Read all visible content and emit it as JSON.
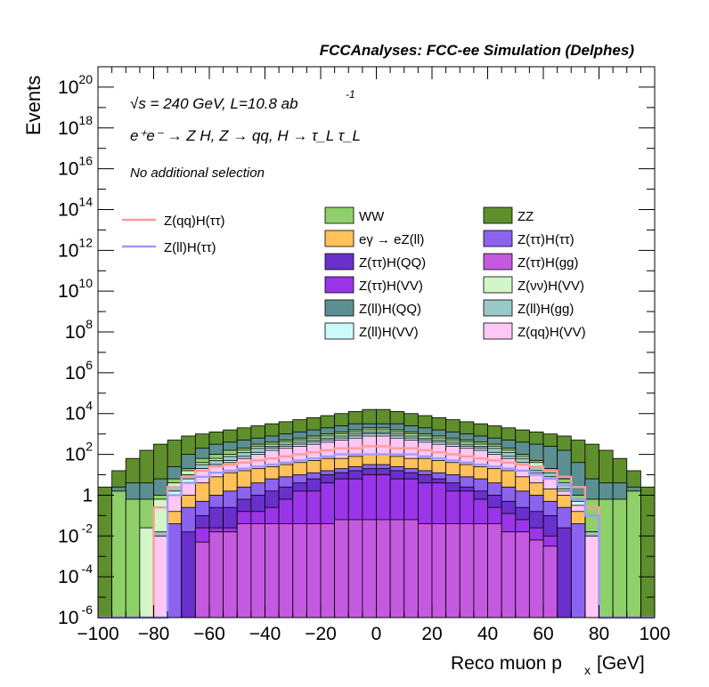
{
  "header": "FCCAnalyses: FCC-ee Simulation (Delphes)",
  "annotations": {
    "line1": "√s = 240 GeV, L=10.8 ab",
    "line1_sup": "-1",
    "line2": "e⁺e⁻ → Z H, Z → qq, H → τ_L τ_L",
    "line3": "No additional selection"
  },
  "colors": {
    "WW": "#8fd06a",
    "ZZ": "#5f8f2c",
    "egamma": "#ffc25a",
    "Ztautau_Htautau": "#8b63f0",
    "Ztautau_HQQ": "#6a30cc",
    "Ztautau_Hgg": "#c45ae0",
    "Ztautau_HVV": "#9a35e8",
    "Znunu_HVV": "#d2f6c7",
    "Zll_HQQ": "#5c8f91",
    "Zll_Hgg": "#99c8c7",
    "Zll_HVV": "#cbfafb",
    "Zqq_HVV": "#ffc8f4",
    "sig_qq": "#ff9a9a",
    "sig_ll": "#9b9bff"
  },
  "chart_data": {
    "type": "bar",
    "stacked": true,
    "log_y": true,
    "xlabel": "Reco muon p",
    "xlabel_sub": "x",
    "xlabel_unit": "[GeV]",
    "ylabel": "Events",
    "xlim": [
      -100,
      100
    ],
    "ylim_exp": [
      -6,
      21
    ],
    "x_ticks": [
      "−100",
      "−80",
      "−60",
      "−40",
      "−20",
      "0",
      "20",
      "40",
      "60",
      "80",
      "100"
    ],
    "y_ticks": [
      {
        "base": "10",
        "exp": "20",
        "v": 20
      },
      {
        "base": "10",
        "exp": "18",
        "v": 18
      },
      {
        "base": "10",
        "exp": "16",
        "v": 16
      },
      {
        "base": "10",
        "exp": "14",
        "v": 14
      },
      {
        "base": "10",
        "exp": "12",
        "v": 12
      },
      {
        "base": "10",
        "exp": "10",
        "v": 10
      },
      {
        "base": "10",
        "exp": "8",
        "v": 8
      },
      {
        "base": "10",
        "exp": "6",
        "v": 6
      },
      {
        "base": "10",
        "exp": "4",
        "v": 4
      },
      {
        "base": "10",
        "exp": "2",
        "v": 2
      },
      {
        "base": "1",
        "exp": "",
        "v": 0
      },
      {
        "base": "10",
        "exp": "-2",
        "v": -2
      },
      {
        "base": "10",
        "exp": "-4",
        "v": -4
      },
      {
        "base": "10",
        "exp": "-6",
        "v": -6
      }
    ],
    "bin_centers": [
      -97.5,
      -92.5,
      -87.5,
      -82.5,
      -77.5,
      -72.5,
      -67.5,
      -62.5,
      -57.5,
      -52.5,
      -47.5,
      -42.5,
      -37.5,
      -32.5,
      -27.5,
      -22.5,
      -17.5,
      -12.5,
      -7.5,
      -2.5,
      2.5,
      7.5,
      12.5,
      17.5,
      22.5,
      27.5,
      32.5,
      37.5,
      42.5,
      47.5,
      52.5,
      57.5,
      62.5,
      67.5,
      72.5,
      77.5,
      82.5,
      87.5,
      92.5,
      97.5
    ],
    "stack_order": [
      "Ztautau_Hgg",
      "Ztautau_HVV",
      "Ztautau_HQQ",
      "Ztautau_Htautau",
      "egamma",
      "Zqq_HVV",
      "Zll_HVV",
      "Zll_Hgg",
      "Znunu_HVV",
      "WW",
      "Zll_HQQ",
      "ZZ"
    ],
    "stack_totals_log10": {
      "Ztautau_Hgg": [
        -6,
        -6,
        -6,
        -6,
        -6,
        -6,
        -6,
        -2.3,
        -1.8,
        -1.8,
        -1.4,
        -1.4,
        -1.4,
        -1.4,
        -1.4,
        -1.4,
        -1.4,
        -1.2,
        -1.2,
        -1.2,
        -1.2,
        -1.2,
        -1.2,
        -1.4,
        -1.4,
        -1.4,
        -1.4,
        -1.4,
        -1.4,
        -1.8,
        -1.8,
        -2.2,
        -2.5,
        -6,
        -6,
        -6,
        -6,
        -6,
        -6,
        -6
      ],
      "Ztautau_HVV": [
        -6,
        -6,
        -6,
        -6,
        -6,
        -6,
        -6,
        -1.6,
        -1.6,
        -1.6,
        -0.8,
        -0.8,
        -0.6,
        -0.2,
        0.2,
        0.2,
        0.6,
        0.8,
        0.8,
        1.0,
        1.0,
        0.8,
        0.8,
        0.6,
        0.6,
        0.2,
        0.2,
        -0.2,
        -0.6,
        -0.9,
        -1.2,
        -1.6,
        -2.0,
        -6,
        -6,
        -6,
        -6,
        -6,
        -6,
        -6
      ],
      "Ztautau_HQQ": [
        -6,
        -6,
        -6,
        -6,
        -6,
        -6,
        -1.8,
        -1.0,
        -0.6,
        -0.6,
        -0.2,
        0.0,
        0.2,
        0.4,
        0.6,
        0.8,
        1.0,
        1.1,
        1.2,
        1.3,
        1.3,
        1.2,
        1.1,
        1.0,
        0.8,
        0.6,
        0.4,
        0.2,
        0.0,
        -0.3,
        -0.6,
        -0.8,
        -1.0,
        -1.6,
        -6,
        -6,
        -6,
        -6,
        -6,
        -6
      ],
      "Ztautau_Htautau": [
        -6,
        -6,
        -6,
        -6,
        -6,
        -1.4,
        -0.6,
        -0.3,
        0.0,
        0.2,
        0.4,
        0.6,
        0.8,
        0.9,
        1.0,
        1.1,
        1.2,
        1.3,
        1.4,
        1.5,
        1.5,
        1.4,
        1.3,
        1.2,
        1.1,
        1.0,
        0.9,
        0.8,
        0.6,
        0.4,
        0.2,
        0.0,
        -0.3,
        -0.6,
        -1.4,
        -6,
        -6,
        -6,
        -6,
        -6
      ],
      "egamma": [
        -6,
        -6,
        -6,
        -6,
        -6,
        -0.8,
        0.0,
        0.6,
        0.9,
        1.1,
        1.2,
        1.3,
        1.4,
        1.5,
        1.6,
        1.7,
        1.8,
        1.8,
        1.9,
        2.0,
        2.0,
        1.9,
        1.8,
        1.8,
        1.7,
        1.6,
        1.5,
        1.4,
        1.3,
        1.2,
        0.9,
        0.6,
        0.3,
        0.0,
        -0.8,
        -6,
        -6,
        -6,
        -6,
        -6
      ],
      "Zqq_HVV": [
        -6,
        -6,
        -6,
        -6,
        -2.0,
        0.0,
        0.6,
        1.2,
        1.4,
        1.6,
        1.8,
        2.0,
        2.2,
        2.3,
        2.4,
        2.5,
        2.6,
        2.7,
        2.8,
        2.9,
        2.9,
        2.8,
        2.7,
        2.6,
        2.5,
        2.4,
        2.3,
        2.2,
        2.0,
        1.8,
        1.5,
        1.1,
        0.8,
        0.2,
        -0.5,
        -2.0,
        -6,
        -6,
        -6,
        -6
      ],
      "Zll_HVV": [
        -6,
        -6,
        -6,
        -6,
        -2.0,
        0.2,
        0.8,
        1.3,
        1.5,
        1.7,
        1.9,
        2.1,
        2.3,
        2.4,
        2.5,
        2.6,
        2.7,
        2.8,
        2.9,
        3.0,
        3.0,
        2.9,
        2.8,
        2.7,
        2.6,
        2.5,
        2.4,
        2.3,
        2.1,
        1.9,
        1.6,
        1.2,
        0.9,
        0.3,
        -0.3,
        -2.0,
        -6,
        -6,
        -6,
        -6
      ],
      "Zll_Hgg": [
        -6,
        -6,
        -6,
        -6,
        -1.8,
        0.4,
        1.0,
        1.5,
        1.7,
        1.9,
        2.1,
        2.3,
        2.4,
        2.5,
        2.6,
        2.7,
        2.8,
        2.9,
        3.0,
        3.1,
        3.1,
        3.0,
        2.9,
        2.8,
        2.7,
        2.6,
        2.5,
        2.4,
        2.3,
        2.1,
        1.8,
        1.4,
        1.1,
        0.5,
        -0.2,
        -1.8,
        -6,
        -6,
        -6,
        -6
      ],
      "Znunu_HVV": [
        -6,
        -6,
        -6,
        -1.6,
        -0.2,
        0.6,
        1.2,
        1.6,
        1.8,
        2.0,
        2.2,
        2.4,
        2.5,
        2.6,
        2.7,
        2.8,
        2.9,
        3.0,
        3.1,
        3.2,
        3.2,
        3.1,
        3.0,
        2.9,
        2.8,
        2.7,
        2.6,
        2.5,
        2.4,
        2.2,
        1.9,
        1.6,
        1.2,
        0.6,
        -0.2,
        -1.8,
        -6,
        -6,
        -6,
        -6
      ],
      "WW": [
        -6,
        0.2,
        -0.2,
        -0.2,
        0.0,
        0.8,
        1.3,
        1.8,
        2.0,
        2.2,
        2.3,
        2.5,
        2.6,
        2.7,
        2.8,
        2.9,
        3.0,
        3.1,
        3.2,
        3.3,
        3.3,
        3.2,
        3.1,
        3.0,
        2.9,
        2.8,
        2.7,
        2.6,
        2.5,
        2.3,
        2.0,
        1.7,
        1.3,
        0.8,
        0.0,
        -0.2,
        -0.2,
        -0.2,
        0.2,
        -6
      ],
      "Zll_HQQ": [
        -6,
        0.4,
        0.6,
        0.6,
        0.8,
        1.4,
        2.0,
        2.3,
        2.5,
        2.6,
        2.7,
        2.8,
        2.9,
        3.0,
        3.1,
        3.2,
        3.3,
        3.4,
        3.5,
        3.5,
        3.5,
        3.5,
        3.4,
        3.3,
        3.2,
        3.1,
        3.0,
        2.9,
        2.8,
        2.7,
        2.6,
        2.5,
        2.4,
        2.2,
        1.6,
        0.8,
        0.6,
        0.6,
        0.4,
        -6
      ],
      "ZZ": [
        0.4,
        1.2,
        1.8,
        2.2,
        2.5,
        2.7,
        2.9,
        3.0,
        3.1,
        3.2,
        3.3,
        3.4,
        3.5,
        3.6,
        3.7,
        3.8,
        3.9,
        4.0,
        4.1,
        4.2,
        4.2,
        4.1,
        4.0,
        3.9,
        3.8,
        3.7,
        3.6,
        3.5,
        3.4,
        3.3,
        3.2,
        3.1,
        3.0,
        2.9,
        2.7,
        2.5,
        2.2,
        1.8,
        1.2,
        0.4
      ]
    },
    "signal_lines_log10": {
      "sig_qq": [
        -6,
        -6,
        -6,
        -6,
        -0.6,
        0.4,
        0.9,
        1.2,
        1.4,
        1.5,
        1.6,
        1.7,
        1.8,
        1.9,
        2.0,
        2.1,
        2.2,
        2.3,
        2.3,
        2.4,
        2.4,
        2.3,
        2.3,
        2.2,
        2.1,
        2.0,
        1.9,
        1.8,
        1.7,
        1.6,
        1.5,
        1.4,
        1.2,
        0.9,
        0.4,
        -0.6,
        -6,
        -6,
        -6,
        -6
      ],
      "sig_ll": [
        -6,
        -6,
        -6,
        -6,
        -6,
        0.0,
        0.6,
        0.9,
        1.1,
        1.2,
        1.3,
        1.4,
        1.5,
        1.6,
        1.7,
        1.8,
        1.9,
        2.0,
        2.0,
        2.0,
        2.0,
        2.0,
        2.0,
        1.9,
        1.8,
        1.7,
        1.6,
        1.5,
        1.4,
        1.3,
        1.2,
        1.0,
        0.8,
        0.5,
        -0.2,
        -1.0,
        -6,
        -6,
        -6,
        -6
      ]
    },
    "legend_signals": [
      {
        "key": "sig_qq",
        "label": "Z(qq)H(ττ)"
      },
      {
        "key": "sig_ll",
        "label": "Z(ll)H(ττ)"
      }
    ],
    "legend_bkg": [
      {
        "key": "WW",
        "label": "WW"
      },
      {
        "key": "ZZ",
        "label": "ZZ"
      },
      {
        "key": "egamma",
        "label": "eγ → eZ(ll)"
      },
      {
        "key": "Ztautau_Htautau",
        "label": "Z(ττ)H(ττ)"
      },
      {
        "key": "Ztautau_HQQ",
        "label": "Z(ττ)H(QQ)"
      },
      {
        "key": "Ztautau_Hgg",
        "label": "Z(ττ)H(gg)"
      },
      {
        "key": "Ztautau_HVV",
        "label": "Z(ττ)H(VV)"
      },
      {
        "key": "Znunu_HVV",
        "label": "Z(νν)H(VV)"
      },
      {
        "key": "Zll_HQQ",
        "label": "Z(ll)H(QQ)"
      },
      {
        "key": "Zll_Hgg",
        "label": "Z(ll)H(gg)"
      },
      {
        "key": "Zll_HVV",
        "label": "Z(ll)H(VV)"
      },
      {
        "key": "Zqq_HVV",
        "label": "Z(qq)H(VV)"
      }
    ]
  }
}
